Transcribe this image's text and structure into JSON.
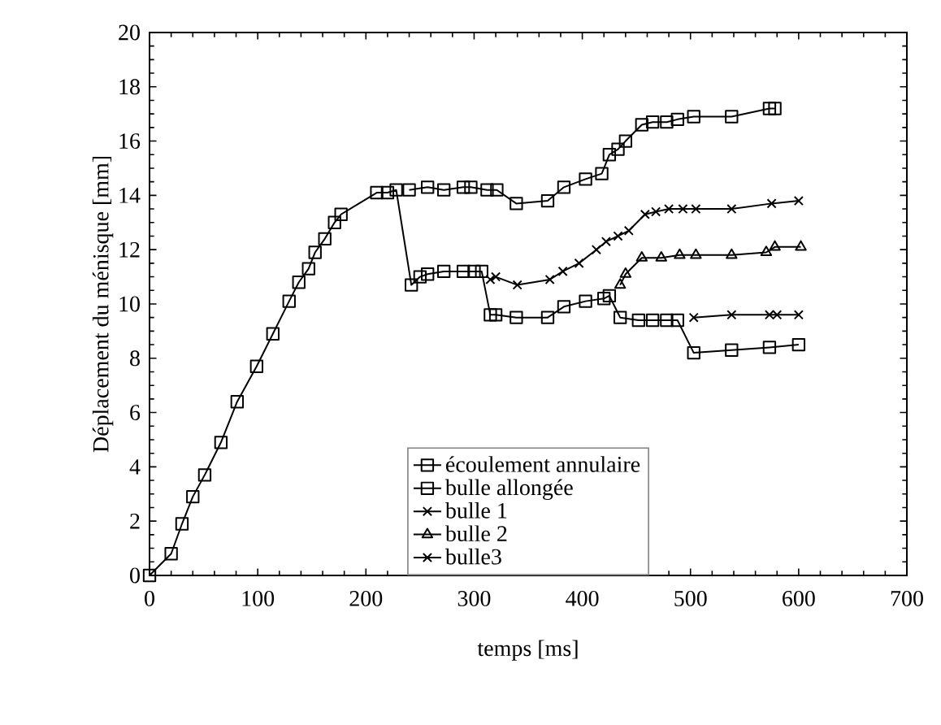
{
  "chart_data": {
    "type": "line",
    "xlabel": "temps [ms]",
    "ylabel": "Déplacement du ménisque [mm]",
    "xlim": [
      0,
      700
    ],
    "xticks": [
      0,
      100,
      200,
      300,
      400,
      500,
      600,
      700
    ],
    "ylim": [
      0,
      20
    ],
    "yticks": [
      0,
      2,
      4,
      6,
      8,
      10,
      12,
      14,
      16,
      18,
      20
    ],
    "grid": false,
    "legend": "bottom",
    "series": [
      {
        "name": "écoulement annulaire",
        "color": "#000000",
        "marker": "square",
        "line_style": "solid",
        "x": [
          0,
          20,
          30,
          40,
          51,
          66,
          81,
          99,
          114,
          129,
          138,
          147,
          153,
          162,
          171,
          177,
          210,
          220,
          228,
          242,
          250,
          257,
          272,
          290,
          300,
          307,
          315,
          320,
          339,
          368,
          383,
          403,
          420,
          425,
          435,
          452,
          465,
          478,
          488,
          503,
          538,
          573,
          600
        ],
        "values": [
          0,
          0.8,
          1.9,
          2.9,
          3.7,
          4.9,
          6.4,
          7.7,
          8.9,
          10.1,
          10.8,
          11.3,
          11.9,
          12.4,
          13.0,
          13.3,
          14.1,
          14.1,
          14.2,
          10.7,
          11.0,
          11.1,
          11.2,
          11.2,
          11.2,
          11.2,
          9.6,
          9.6,
          9.5,
          9.5,
          9.9,
          10.1,
          10.2,
          10.3,
          9.5,
          9.4,
          9.4,
          9.4,
          9.4,
          8.2,
          8.3,
          8.4,
          8.5
        ]
      },
      {
        "name": "bulle allongée",
        "color": "#000000",
        "marker": "square",
        "line_style": "solid",
        "x": [
          240,
          257,
          272,
          290,
          297,
          312,
          321,
          339,
          368,
          383,
          403,
          418,
          425,
          433,
          440,
          455,
          465,
          478,
          488,
          503,
          538,
          573,
          578
        ],
        "values": [
          14.2,
          14.3,
          14.2,
          14.3,
          14.3,
          14.2,
          14.2,
          13.7,
          13.8,
          14.3,
          14.6,
          14.8,
          15.5,
          15.7,
          16.0,
          16.6,
          16.7,
          16.7,
          16.8,
          16.9,
          16.9,
          17.2,
          17.2
        ]
      },
      {
        "name": "bulle 1",
        "color": "#000000",
        "marker": "cross",
        "line_style": "solid",
        "x": [
          315,
          320,
          340,
          370,
          382,
          397,
          413,
          422,
          433,
          443,
          458,
          468,
          480,
          493,
          505,
          538,
          575,
          600
        ],
        "values": [
          10.9,
          11.0,
          10.7,
          10.9,
          11.2,
          11.5,
          12.0,
          12.3,
          12.5,
          12.7,
          13.3,
          13.4,
          13.5,
          13.5,
          13.5,
          13.5,
          13.7,
          13.8
        ]
      },
      {
        "name": "bulle 2",
        "color": "#000000",
        "marker": "triangle",
        "line_style": "solid",
        "x": [
          435,
          440,
          455,
          473,
          490,
          505,
          538,
          570,
          578,
          602
        ],
        "values": [
          10.7,
          11.1,
          11.7,
          11.7,
          11.8,
          11.8,
          11.8,
          11.9,
          12.1,
          12.1
        ]
      },
      {
        "name": "bulle3",
        "color": "#000000",
        "marker": "cross",
        "line_style": "solid",
        "x": [
          503,
          538,
          573,
          580,
          600
        ],
        "values": [
          9.5,
          9.6,
          9.6,
          9.6,
          9.6
        ]
      }
    ]
  }
}
